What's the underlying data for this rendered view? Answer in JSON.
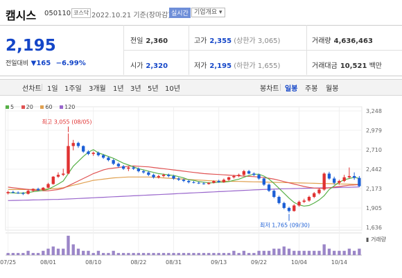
{
  "header": {
    "name": "캠시스",
    "code": "050110",
    "market": "코스닥",
    "date": "2022.10.21 기준(장마감)",
    "realtime_label": "실시간",
    "info_label": "기업개요 ▾"
  },
  "summary": {
    "price": "2,195",
    "change_label": "전일대비",
    "change_arrow": "▼",
    "change_value": "165",
    "change_pct": "−6.99%"
  },
  "stats": {
    "prev_close": {
      "label": "전일",
      "value": "2,360"
    },
    "high": {
      "label": "고가",
      "value": "2,355",
      "extra": "(상한가 3,065)"
    },
    "volume": {
      "label": "거래량",
      "value": "4,636,463"
    },
    "open": {
      "label": "시가",
      "value": "2,320"
    },
    "low": {
      "label": "저가",
      "value": "2,195",
      "extra": "(하한가 1,655)"
    },
    "amount": {
      "label": "거래대금",
      "value": "10,521",
      "unit": "백만"
    }
  },
  "tabs": {
    "line": "선차트",
    "d1": "1일",
    "w1": "1주일",
    "m3": "3개월",
    "y1": "1년",
    "y3": "3년",
    "y5": "5년",
    "y10": "10년",
    "candle": "봉차트",
    "daily": "일봉",
    "weekly": "주봉",
    "monthly": "월봉"
  },
  "legend": {
    "ma5": "5",
    "ma20": "20",
    "ma60": "60",
    "ma120": "120",
    "c5": "#57b047",
    "c20": "#e05252",
    "c60": "#e0a050",
    "c120": "#9966cc"
  },
  "chart_data": {
    "type": "candlestick",
    "ylim": [
      1500,
      3400
    ],
    "y_ticks": [
      "3,248",
      "2,979",
      "2,710",
      "2,442",
      "2,173",
      "1,905",
      "1,636"
    ],
    "x_ticks": [
      "07/25",
      "08/01",
      "08/10",
      "08/22",
      "08/31",
      "09/13",
      "09/22",
      "10/04",
      "10/14"
    ],
    "annotations": {
      "high": "최고 3,055 (08/05)",
      "low": "최저 1,765 (09/30)"
    },
    "volume_label": "거래량",
    "candles": [
      [
        2080,
        2120,
        2060,
        2100
      ],
      [
        2100,
        2120,
        2080,
        2090
      ],
      [
        2090,
        2110,
        2070,
        2080
      ],
      [
        2080,
        2100,
        2050,
        2070
      ],
      [
        2070,
        2140,
        2060,
        2120
      ],
      [
        2120,
        2160,
        2100,
        2150
      ],
      [
        2150,
        2170,
        2120,
        2130
      ],
      [
        2130,
        2180,
        2120,
        2170
      ],
      [
        2170,
        2250,
        2160,
        2230
      ],
      [
        2230,
        2360,
        2220,
        2350
      ],
      [
        2350,
        2420,
        2330,
        2380
      ],
      [
        2380,
        2480,
        2360,
        2400
      ],
      [
        2400,
        3055,
        2390,
        2850
      ],
      [
        2850,
        2950,
        2780,
        2900
      ],
      [
        2900,
        2920,
        2820,
        2850
      ],
      [
        2850,
        2860,
        2740,
        2760
      ],
      [
        2760,
        2780,
        2700,
        2720
      ],
      [
        2720,
        2760,
        2690,
        2740
      ],
      [
        2740,
        2760,
        2680,
        2700
      ],
      [
        2700,
        2720,
        2640,
        2660
      ],
      [
        2660,
        2680,
        2600,
        2620
      ],
      [
        2620,
        2640,
        2540,
        2560
      ],
      [
        2560,
        2580,
        2500,
        2520
      ],
      [
        2520,
        2540,
        2460,
        2480
      ],
      [
        2480,
        2520,
        2440,
        2500
      ],
      [
        2500,
        2520,
        2460,
        2480
      ],
      [
        2480,
        2500,
        2420,
        2440
      ],
      [
        2440,
        2460,
        2400,
        2420
      ],
      [
        2420,
        2440,
        2360,
        2380
      ],
      [
        2380,
        2400,
        2320,
        2340
      ],
      [
        2340,
        2380,
        2320,
        2360
      ],
      [
        2360,
        2400,
        2340,
        2380
      ],
      [
        2380,
        2400,
        2340,
        2360
      ],
      [
        2360,
        2380,
        2300,
        2320
      ],
      [
        2320,
        2340,
        2280,
        2300
      ],
      [
        2300,
        2320,
        2260,
        2280
      ],
      [
        2280,
        2300,
        2240,
        2260
      ],
      [
        2260,
        2280,
        2240,
        2250
      ],
      [
        2250,
        2270,
        2230,
        2240
      ],
      [
        2240,
        2260,
        2220,
        2230
      ],
      [
        2230,
        2260,
        2220,
        2250
      ],
      [
        2250,
        2290,
        2240,
        2280
      ],
      [
        2280,
        2300,
        2250,
        2260
      ],
      [
        2260,
        2320,
        2250,
        2300
      ],
      [
        2300,
        2350,
        2280,
        2340
      ],
      [
        2340,
        2380,
        2320,
        2360
      ],
      [
        2360,
        2400,
        2340,
        2380
      ],
      [
        2380,
        2460,
        2360,
        2440
      ],
      [
        2440,
        2460,
        2390,
        2400
      ],
      [
        2400,
        2420,
        2360,
        2380
      ],
      [
        2380,
        2400,
        2300,
        2320
      ],
      [
        2320,
        2340,
        2200,
        2220
      ],
      [
        2220,
        2240,
        2100,
        2120
      ],
      [
        2120,
        2140,
        2000,
        2020
      ],
      [
        2020,
        2040,
        1900,
        1920
      ],
      [
        1920,
        1940,
        1820,
        1840
      ],
      [
        1840,
        1860,
        1765,
        1790
      ],
      [
        1790,
        1900,
        1780,
        1880
      ],
      [
        1880,
        1960,
        1860,
        1940
      ],
      [
        1940,
        1990,
        1920,
        1960
      ],
      [
        1960,
        2040,
        1940,
        2020
      ],
      [
        2020,
        2100,
        2000,
        2080
      ],
      [
        2080,
        2160,
        2060,
        2140
      ],
      [
        2140,
        2420,
        2120,
        2400
      ],
      [
        2400,
        2430,
        2300,
        2320
      ],
      [
        2320,
        2350,
        2220,
        2250
      ],
      [
        2250,
        2300,
        2220,
        2280
      ],
      [
        2280,
        2380,
        2260,
        2340
      ],
      [
        2340,
        2500,
        2320,
        2360
      ],
      [
        2360,
        2420,
        2300,
        2330
      ],
      [
        2330,
        2360,
        2180,
        2195
      ]
    ],
    "ma5": [
      2090,
      2085,
      2080,
      2085,
      2090,
      2105,
      2115,
      2125,
      2145,
      2185,
      2230,
      2280,
      2400,
      2520,
      2600,
      2680,
      2750,
      2790,
      2740,
      2710,
      2680,
      2650,
      2610,
      2570,
      2540,
      2510,
      2480,
      2460,
      2440,
      2420,
      2400,
      2390,
      2380,
      2370,
      2350,
      2330,
      2300,
      2290,
      2270,
      2260,
      2250,
      2250,
      2260,
      2260,
      2270,
      2290,
      2310,
      2340,
      2370,
      2390,
      2390,
      2360,
      2310,
      2240,
      2160,
      2080,
      2000,
      1930,
      1890,
      1870,
      1880,
      1920,
      1970,
      2040,
      2140,
      2200,
      2260,
      2300,
      2320,
      2340,
      2320
    ],
    "ma20": [
      2180,
      2170,
      2160,
      2150,
      2140,
      2130,
      2125,
      2120,
      2120,
      2130,
      2140,
      2160,
      2200,
      2240,
      2280,
      2320,
      2360,
      2400,
      2430,
      2460,
      2480,
      2490,
      2500,
      2510,
      2520,
      2525,
      2520,
      2515,
      2510,
      2500,
      2490,
      2480,
      2470,
      2460,
      2450,
      2440,
      2430,
      2420,
      2410,
      2400,
      2395,
      2390,
      2385,
      2380,
      2375,
      2370,
      2365,
      2360,
      2355,
      2350,
      2345,
      2335,
      2325,
      2310,
      2290,
      2270,
      2250,
      2230,
      2210,
      2190,
      2175,
      2165,
      2160,
      2160,
      2170,
      2180,
      2190,
      2200,
      2210,
      2215,
      2220
    ],
    "ma60": [
      2140,
      2140,
      2140,
      2140,
      2140,
      2140,
      2140,
      2145,
      2150,
      2155,
      2160,
      2170,
      2190,
      2210,
      2230,
      2250,
      2270,
      2290,
      2300,
      2310,
      2320,
      2330,
      2335,
      2340,
      2345,
      2345,
      2345,
      2345,
      2345,
      2340,
      2335,
      2330,
      2325,
      2320,
      2315,
      2310,
      2305,
      2300,
      2295,
      2290,
      2285,
      2280,
      2278,
      2276,
      2275,
      2274,
      2272,
      2270,
      2268,
      2266,
      2264,
      2262,
      2260,
      2258,
      2256,
      2254,
      2252,
      2250,
      2248,
      2246,
      2244,
      2242,
      2240,
      2238,
      2236,
      2234,
      2232,
      2230,
      2228,
      2226,
      2224
    ],
    "ma120": [
      1960,
      1962,
      1964,
      1966,
      1968,
      1970,
      1972,
      1974,
      1976,
      1978,
      1980,
      1983,
      1986,
      1990,
      1994,
      1998,
      2002,
      2006,
      2010,
      2014,
      2018,
      2022,
      2026,
      2030,
      2034,
      2038,
      2042,
      2046,
      2050,
      2054,
      2058,
      2062,
      2066,
      2070,
      2074,
      2078,
      2082,
      2086,
      2090,
      2094,
      2098,
      2102,
      2106,
      2110,
      2114,
      2118,
      2122,
      2126,
      2130,
      2134,
      2138,
      2141,
      2144,
      2147,
      2150,
      2152,
      2154,
      2156,
      2158,
      2160,
      2162,
      2164,
      2166,
      2168,
      2170,
      2172,
      2174,
      2176,
      2178,
      2180,
      2182
    ],
    "volume": [
      1,
      1,
      1,
      1,
      2,
      1,
      1,
      2,
      3,
      4,
      3,
      3,
      9,
      5,
      3,
      2,
      2,
      1,
      2,
      1,
      1,
      2,
      1,
      1,
      1,
      1,
      1,
      1,
      1,
      1,
      1,
      1,
      1,
      1,
      1,
      1,
      1,
      1,
      1,
      1,
      1,
      1,
      1,
      1,
      1,
      2,
      1,
      2,
      1,
      1,
      2,
      2,
      2,
      3,
      3,
      4,
      3,
      2,
      2,
      2,
      2,
      2,
      2,
      5,
      3,
      2,
      2,
      2,
      3,
      2,
      3
    ]
  }
}
